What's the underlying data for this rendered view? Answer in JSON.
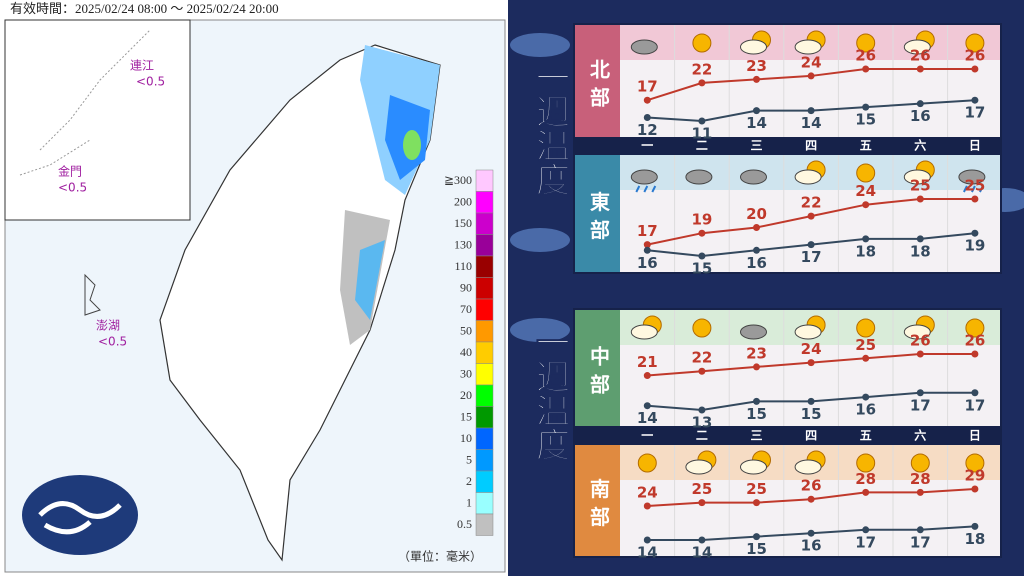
{
  "map": {
    "valid_time": "有效時間：2025/02/24 08:00 ～ 2025/02/24 20:00",
    "islands": [
      {
        "name": "連江",
        "value": "<0.5"
      },
      {
        "name": "金門",
        "value": "<0.5"
      },
      {
        "name": "澎湖",
        "value": "<0.5"
      }
    ],
    "legend": {
      "labels": [
        "≧300",
        "200",
        "150",
        "130",
        "110",
        "90",
        "70",
        "50",
        "40",
        "30",
        "20",
        "15",
        "10",
        "5",
        "2",
        "1",
        "0.5"
      ],
      "colors": [
        "#ffc8ff",
        "#ff00ff",
        "#cc00cc",
        "#990099",
        "#990000",
        "#cc0000",
        "#ff0000",
        "#ff9900",
        "#ffcc00",
        "#ffff00",
        "#00ff00",
        "#009900",
        "#0066ff",
        "#0099ff",
        "#00ccff",
        "#99ffff",
        "#c0c0c0"
      ]
    },
    "unit": "（單位：毫米）"
  },
  "weekly": {
    "titles": [
      "一週溫度",
      "一週溫度"
    ]
  },
  "chart_data": [
    {
      "type": "line",
      "title": "北部",
      "color": "#c8607a",
      "series": [
        {
          "color": "#c0392b",
          "values": [
            17,
            22,
            23,
            24,
            26,
            26,
            26
          ]
        },
        {
          "color": "#34495e",
          "values": [
            12,
            11,
            14,
            14,
            15,
            16,
            17
          ]
        }
      ]
    },
    {
      "type": "line",
      "title": "東部",
      "color": "#3a8aa8",
      "categories": [
        "一",
        "二",
        "三",
        "四",
        "五",
        "六",
        "日"
      ],
      "series": [
        {
          "color": "#c0392b",
          "values": [
            17,
            19,
            20,
            22,
            24,
            25,
            25
          ]
        },
        {
          "color": "#34495e",
          "values": [
            16,
            15,
            16,
            17,
            18,
            18,
            19
          ]
        }
      ]
    },
    {
      "type": "line",
      "title": "中部",
      "color": "#5e9e70",
      "series": [
        {
          "color": "#c0392b",
          "values": [
            21,
            22,
            23,
            24,
            25,
            26,
            26
          ]
        },
        {
          "color": "#34495e",
          "values": [
            14,
            13,
            15,
            15,
            16,
            17,
            17
          ]
        }
      ]
    },
    {
      "type": "line",
      "title": "南部",
      "color": "#e08a40",
      "categories": [
        "一",
        "二",
        "三",
        "四",
        "五",
        "六",
        "日"
      ],
      "series": [
        {
          "color": "#c0392b",
          "values": [
            24,
            25,
            25,
            26,
            28,
            28,
            29
          ]
        },
        {
          "color": "#34495e",
          "values": [
            14,
            14,
            15,
            16,
            17,
            17,
            18
          ]
        }
      ]
    }
  ]
}
